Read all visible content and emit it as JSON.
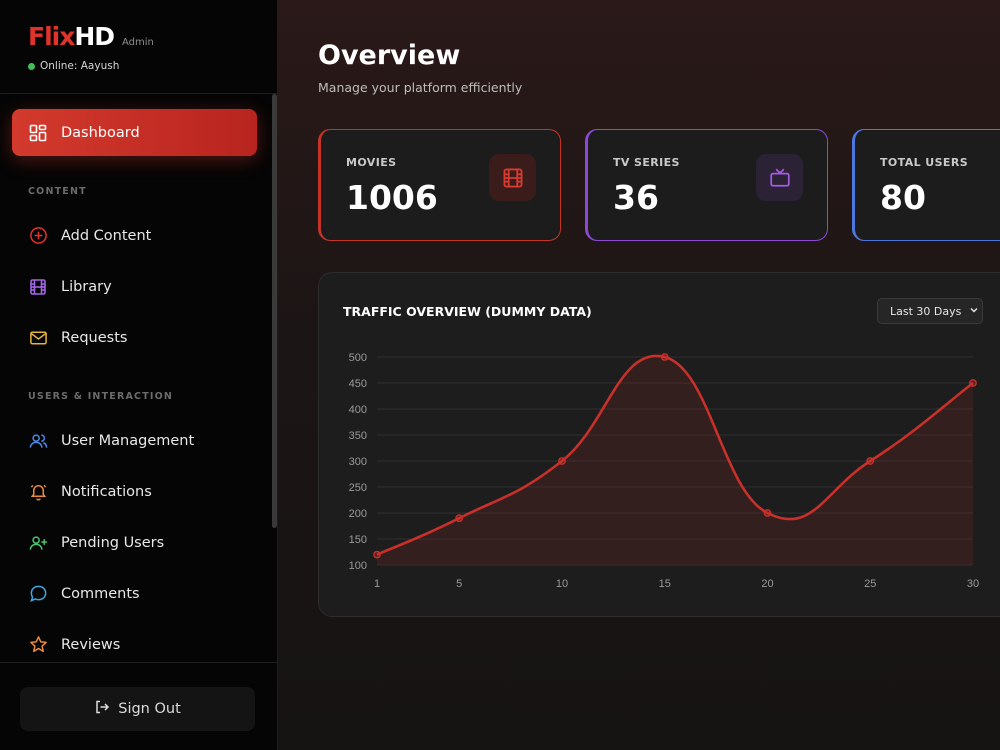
{
  "brand": {
    "name_part1": "Flix",
    "name_part2": "HD",
    "badge": "Admin",
    "online_status": "Online: Aayush"
  },
  "sidebar": {
    "dashboard": {
      "label": "Dashboard",
      "icon": "dashboard-grid-icon"
    },
    "section_content": "CONTENT",
    "add_content": {
      "label": "Add Content",
      "icon": "plus-circle-icon"
    },
    "library": {
      "label": "Library",
      "icon": "film-icon"
    },
    "requests": {
      "label": "Requests",
      "icon": "mail-icon"
    },
    "section_users": "USERS & INTERACTION",
    "user_management": {
      "label": "User Management",
      "icon": "users-icon"
    },
    "notifications": {
      "label": "Notifications",
      "icon": "bell-icon"
    },
    "pending_users": {
      "label": "Pending Users",
      "icon": "user-plus-icon"
    },
    "comments": {
      "label": "Comments",
      "icon": "comment-icon"
    },
    "reviews": {
      "label": "Reviews",
      "icon": "star-icon"
    },
    "sign_out": "Sign Out"
  },
  "colors": {
    "accent_red": "#d33a2d",
    "purple": "#8d49d6",
    "blue": "#4d77df",
    "green": "#3fbf5a",
    "yellow": "#e2b33b",
    "orange": "#e98a3a"
  },
  "page": {
    "title": "Overview",
    "subtitle": "Manage your platform efficiently"
  },
  "stats": {
    "movies": {
      "label": "MOVIES",
      "value": "1006"
    },
    "tv": {
      "label": "TV SERIES",
      "value": "36"
    },
    "users": {
      "label": "TOTAL USERS",
      "value": "80"
    }
  },
  "chart": {
    "title": "TRAFFIC OVERVIEW (DUMMY DATA)",
    "range_selected": "Last 30 Days"
  },
  "chart_data": {
    "type": "line",
    "x": [
      1,
      5,
      10,
      15,
      20,
      25,
      30
    ],
    "values": [
      120,
      190,
      300,
      500,
      200,
      300,
      450
    ],
    "x_ticks": [
      "1",
      "5",
      "10",
      "15",
      "20",
      "25",
      "30"
    ],
    "y_ticks": [
      "100",
      "150",
      "200",
      "250",
      "300",
      "350",
      "400",
      "450",
      "500"
    ],
    "ylim": [
      100,
      500
    ],
    "xlim": [
      1,
      30
    ],
    "grid": true,
    "color": "#c8302a"
  }
}
